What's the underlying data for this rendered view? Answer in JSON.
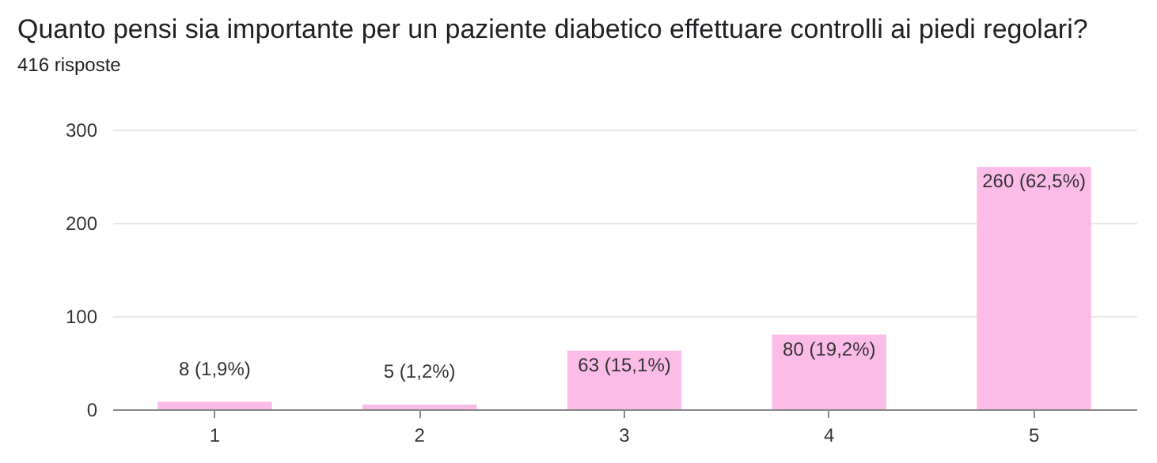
{
  "chart_data": {
    "type": "bar",
    "title": "Quanto pensi sia importante per un paziente diabetico effettuare controlli ai piedi regolari?",
    "subtitle": "416 risposte",
    "categories": [
      "1",
      "2",
      "3",
      "4",
      "5"
    ],
    "values": [
      8,
      5,
      63,
      80,
      260
    ],
    "value_labels": [
      "8 (1,9%)",
      "5 (1,2%)",
      "63 (15,1%)",
      "80 (19,2%)",
      "260 (62,5%)"
    ],
    "color": "#fbbde8",
    "ylim": [
      0,
      300
    ],
    "yticks": [
      0,
      100,
      200,
      300
    ],
    "grid": "y"
  }
}
